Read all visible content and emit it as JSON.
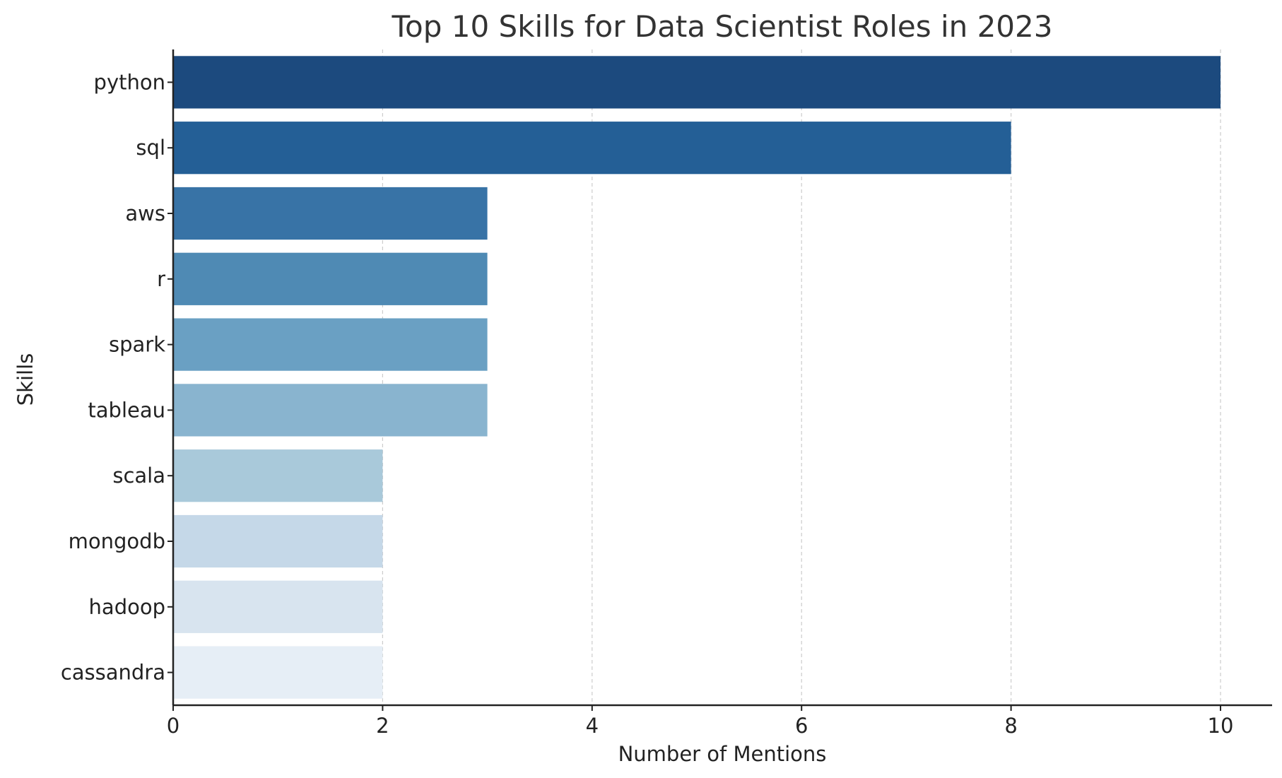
{
  "chart_data": {
    "type": "bar",
    "orientation": "horizontal",
    "title": "Top 10 Skills for Data Scientist Roles in 2023",
    "xlabel": "Number of Mentions",
    "ylabel": "Skills",
    "categories": [
      "python",
      "sql",
      "aws",
      "r",
      "spark",
      "tableau",
      "scala",
      "mongodb",
      "hadoop",
      "cassandra"
    ],
    "values": [
      10,
      8,
      3,
      3,
      3,
      3,
      2,
      2,
      2,
      2
    ],
    "colors": [
      "#1c4a7e",
      "#245f96",
      "#3873a6",
      "#4f8ab4",
      "#6aa0c3",
      "#89b4cf",
      "#a9c9da",
      "#c5d8e8",
      "#d8e4ef",
      "#e6eef6"
    ],
    "xlim": [
      0,
      10.5
    ],
    "xticks": [
      "0",
      "2",
      "4",
      "6",
      "8",
      "10"
    ],
    "grid": "vertical-dashed",
    "legend": "none"
  }
}
